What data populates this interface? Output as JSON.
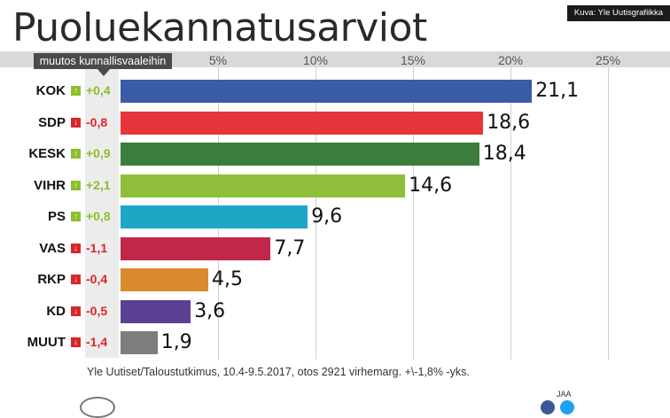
{
  "header": {
    "title": "Puoluekannatusarviot",
    "credit": "Kuva: Yle Uutisgrafiikka"
  },
  "change_header": "muutos kunnallisvaaleihin",
  "footer": {
    "source": "Yle Uutiset/Taloustutkimus, 10.4-9.5.2017, otos 2921 virhemarg. +\\-1,8% -yks.",
    "share_label": "JAA"
  },
  "chart_data": {
    "type": "bar",
    "orientation": "horizontal",
    "categories": [
      "KOK",
      "SDP",
      "KESK",
      "VIHR",
      "PS",
      "VAS",
      "RKP",
      "KD",
      "MUUT"
    ],
    "values": [
      21.1,
      18.6,
      18.4,
      14.6,
      9.6,
      7.7,
      4.5,
      3.6,
      1.9
    ],
    "value_labels": [
      "21,1",
      "18,6",
      "18,4",
      "14,6",
      "9,6",
      "7,7",
      "4,5",
      "3,6",
      "1,9"
    ],
    "changes": [
      "+0,4",
      "-0,8",
      "+0,9",
      "+2,1",
      "+0,8",
      "-1,1",
      "-0,4",
      "-0,5",
      "-1,4"
    ],
    "change_direction": [
      "up",
      "down",
      "up",
      "up",
      "up",
      "down",
      "down",
      "down",
      "down"
    ],
    "colors": [
      "#3a5ba6",
      "#e5353a",
      "#3b7d3a",
      "#8fbf3a",
      "#1ea6c6",
      "#c0284a",
      "#d98a2e",
      "#5b3f92",
      "#7d7d7d"
    ],
    "up_color": "#8cbf2a",
    "down_color": "#d9262b",
    "x_ticks": [
      "5%",
      "10%",
      "15%",
      "20%",
      "25%"
    ],
    "x_tick_values": [
      5,
      10,
      15,
      20,
      25
    ],
    "xlim": [
      0,
      25
    ],
    "grid": true
  }
}
